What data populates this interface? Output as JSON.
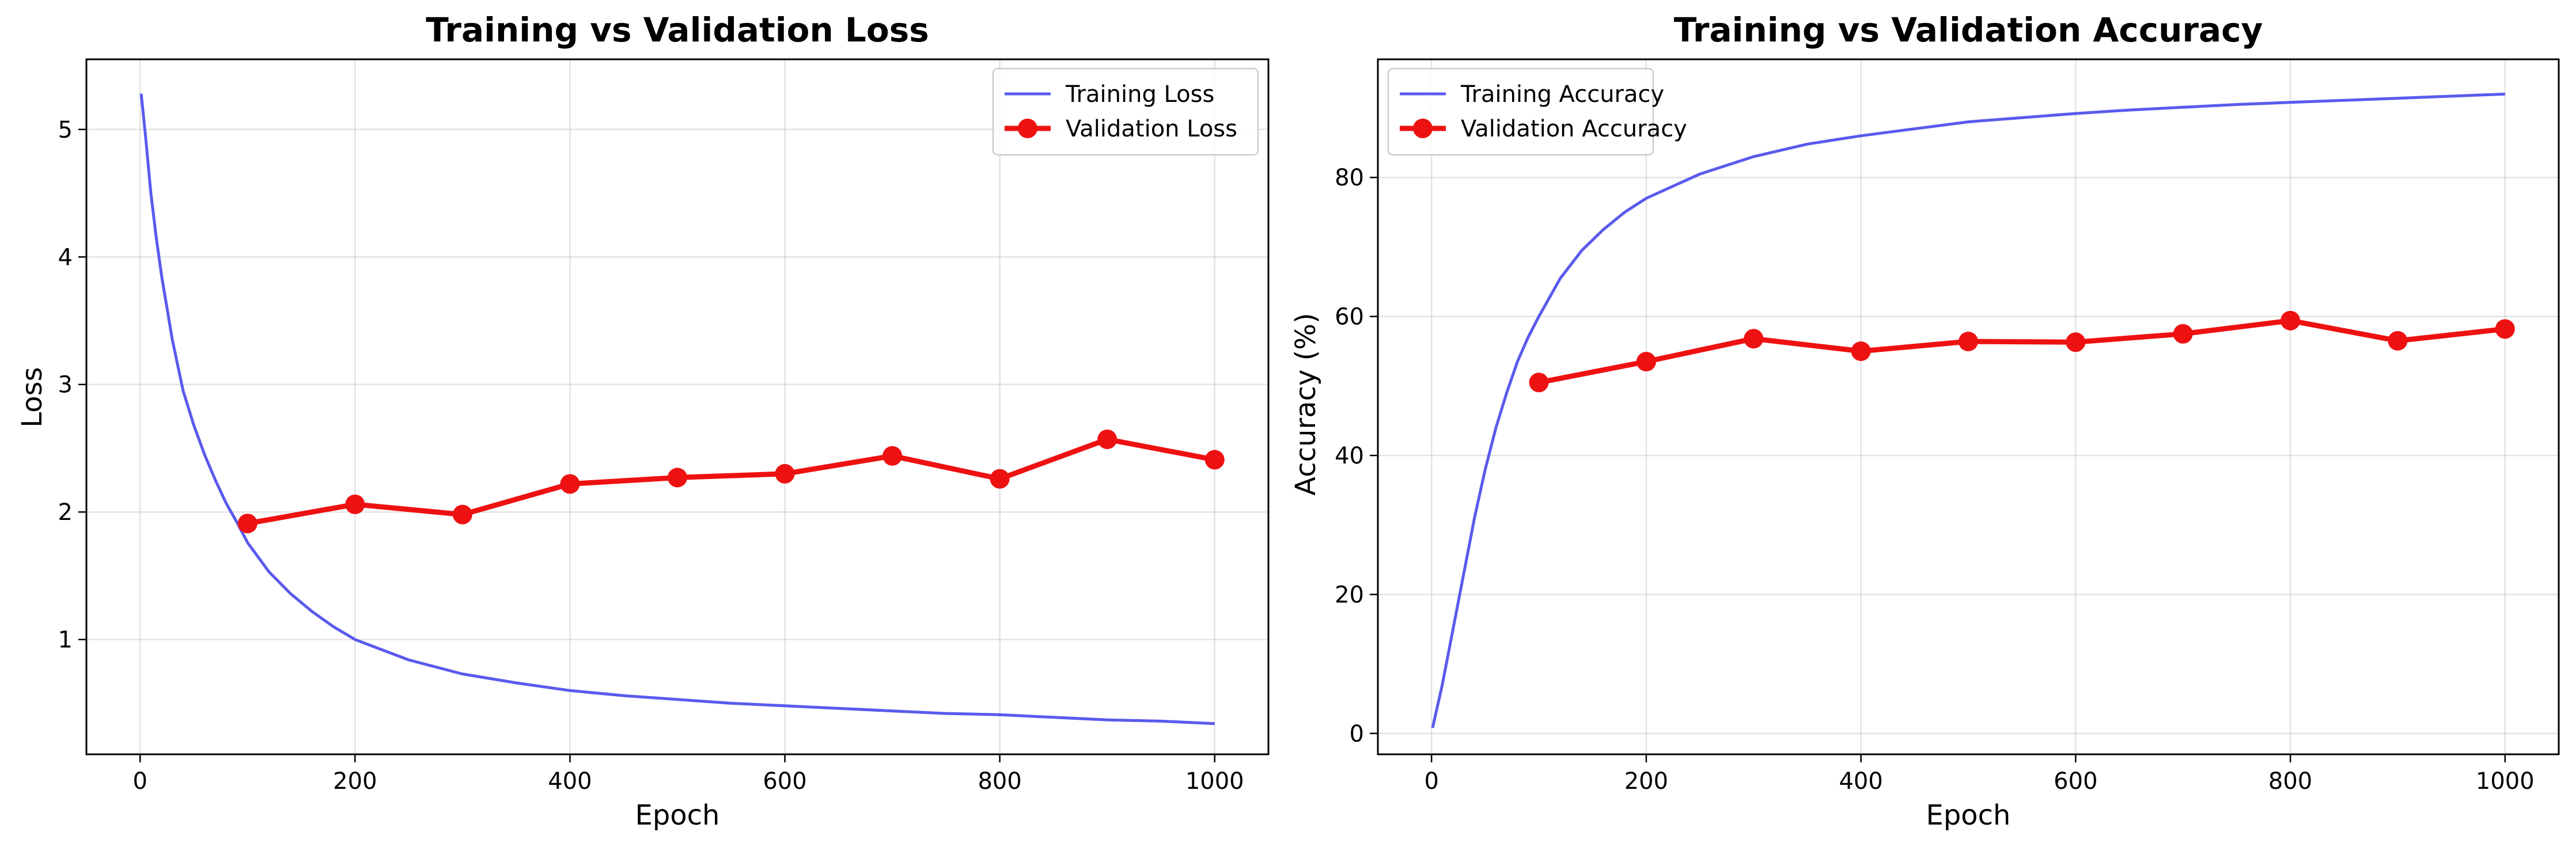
{
  "chart_data": [
    {
      "type": "line",
      "title": "Training vs Validation Loss",
      "xlabel": "Epoch",
      "ylabel": "Loss",
      "xlim": [
        -50,
        1050
      ],
      "ylim": [
        0.1,
        5.55
      ],
      "xticks": [
        0,
        200,
        400,
        600,
        800,
        1000
      ],
      "yticks": [
        1,
        2,
        3,
        4,
        5
      ],
      "grid": true,
      "legend": "top-right",
      "series": [
        {
          "name": "Training Loss",
          "color": "#5a5aee",
          "style": "line",
          "x": [
            1,
            5,
            10,
            15,
            20,
            25,
            30,
            40,
            50,
            60,
            70,
            80,
            90,
            100,
            120,
            140,
            160,
            180,
            200,
            250,
            300,
            350,
            400,
            450,
            500,
            550,
            600,
            650,
            700,
            750,
            800,
            850,
            900,
            950,
            1000
          ],
          "y": [
            5.28,
            4.95,
            4.5,
            4.15,
            3.85,
            3.6,
            3.35,
            2.95,
            2.68,
            2.45,
            2.25,
            2.07,
            1.92,
            1.76,
            1.53,
            1.36,
            1.22,
            1.1,
            1.0,
            0.84,
            0.73,
            0.66,
            0.6,
            0.56,
            0.53,
            0.5,
            0.48,
            0.46,
            0.44,
            0.42,
            0.41,
            0.39,
            0.37,
            0.36,
            0.34
          ]
        },
        {
          "name": "Validation Loss",
          "color": "#ee1111",
          "style": "line-marker",
          "x": [
            100,
            200,
            300,
            400,
            500,
            600,
            700,
            800,
            900,
            1000
          ],
          "y": [
            1.91,
            2.06,
            1.98,
            2.22,
            2.27,
            2.3,
            2.44,
            2.26,
            2.57,
            2.41
          ]
        }
      ]
    },
    {
      "type": "line",
      "title": "Training vs Validation Accuracy",
      "xlabel": "Epoch",
      "ylabel": "Accuracy (%)",
      "xlim": [
        -50,
        1050
      ],
      "ylim": [
        -3,
        97
      ],
      "xticks": [
        0,
        200,
        400,
        600,
        800,
        1000
      ],
      "yticks": [
        0,
        20,
        40,
        60,
        80
      ],
      "grid": true,
      "legend": "top-left",
      "series": [
        {
          "name": "Training Accuracy",
          "color": "#5a5aee",
          "style": "line",
          "x": [
            1,
            10,
            20,
            30,
            40,
            50,
            60,
            70,
            80,
            90,
            100,
            120,
            140,
            160,
            180,
            200,
            250,
            300,
            350,
            400,
            450,
            500,
            550,
            600,
            650,
            700,
            750,
            800,
            850,
            900,
            950,
            1000
          ],
          "y": [
            0.8,
            7,
            15,
            23,
            31,
            38,
            44,
            49,
            53.5,
            57,
            60,
            65.5,
            69.5,
            72.5,
            75,
            77,
            80.5,
            83,
            84.8,
            86,
            87,
            88,
            88.6,
            89.2,
            89.7,
            90.1,
            90.5,
            90.8,
            91.1,
            91.4,
            91.7,
            92
          ]
        },
        {
          "name": "Validation Accuracy",
          "color": "#ee1111",
          "style": "line-marker",
          "x": [
            100,
            200,
            300,
            400,
            500,
            600,
            700,
            800,
            900,
            1000
          ],
          "y": [
            50.5,
            53.5,
            56.8,
            55.0,
            56.4,
            56.3,
            57.5,
            59.4,
            56.5,
            58.2
          ]
        }
      ]
    }
  ]
}
